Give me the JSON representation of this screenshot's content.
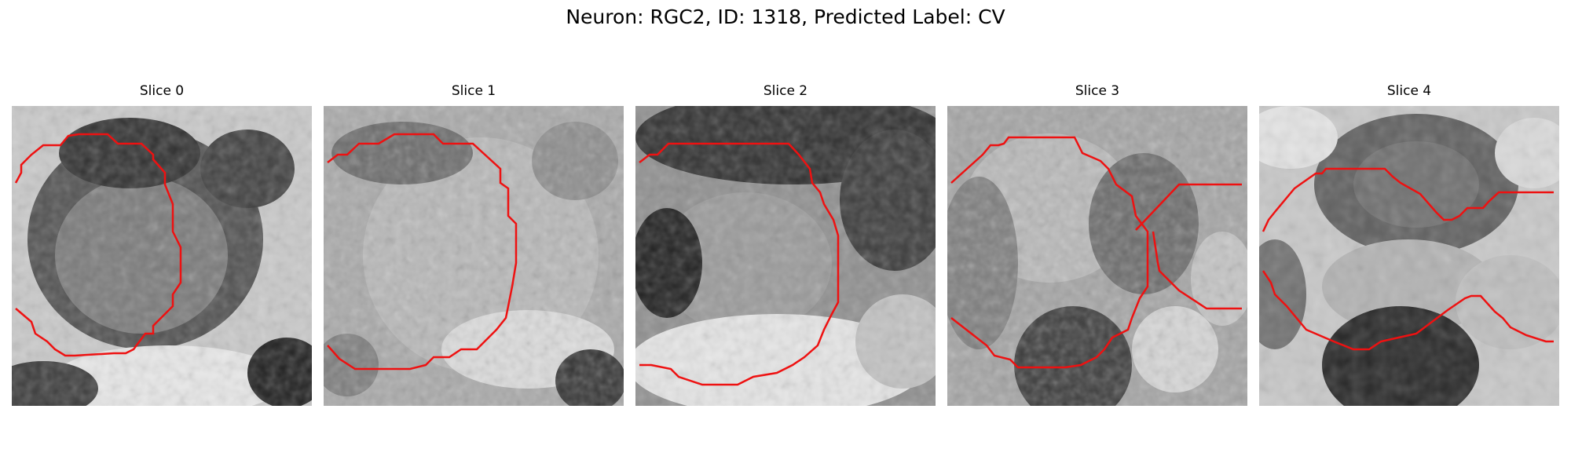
{
  "figure": {
    "title": "Neuron: RGC2, ID: 1318, Predicted Label: CV"
  },
  "colors": {
    "contour": "#ee1111",
    "background": "#ffffff"
  },
  "panels": [
    {
      "title": "Slice 0"
    },
    {
      "title": "Slice 1"
    },
    {
      "title": "Slice 2"
    },
    {
      "title": "Slice 3"
    },
    {
      "title": "Slice 4"
    }
  ]
}
